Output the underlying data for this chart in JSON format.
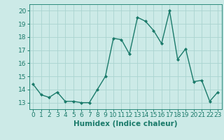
{
  "x": [
    0,
    1,
    2,
    3,
    4,
    5,
    6,
    7,
    8,
    9,
    10,
    11,
    12,
    13,
    14,
    15,
    16,
    17,
    18,
    19,
    20,
    21,
    22,
    23
  ],
  "y": [
    14.4,
    13.6,
    13.4,
    13.8,
    13.1,
    13.1,
    13.0,
    13.0,
    14.0,
    15.0,
    17.9,
    17.8,
    16.7,
    19.5,
    19.2,
    18.5,
    17.5,
    20.0,
    16.3,
    17.1,
    14.6,
    14.7,
    13.1,
    13.8
  ],
  "line_color": "#1a7a6a",
  "marker": "D",
  "marker_size": 2.0,
  "line_width": 1.0,
  "xlabel": "Humidex (Indice chaleur)",
  "ylim": [
    12.5,
    20.5
  ],
  "xlim": [
    -0.5,
    23.5
  ],
  "yticks": [
    13,
    14,
    15,
    16,
    17,
    18,
    19,
    20
  ],
  "xticks": [
    0,
    1,
    2,
    3,
    4,
    5,
    6,
    7,
    8,
    9,
    10,
    11,
    12,
    13,
    14,
    15,
    16,
    17,
    18,
    19,
    20,
    21,
    22,
    23
  ],
  "bg_color": "#cceae7",
  "grid_color": "#aad4d0",
  "tick_fontsize": 6.5,
  "xlabel_fontsize": 7.5,
  "axis_color": "#1a7a6a",
  "spine_color": "#2a8a7a"
}
